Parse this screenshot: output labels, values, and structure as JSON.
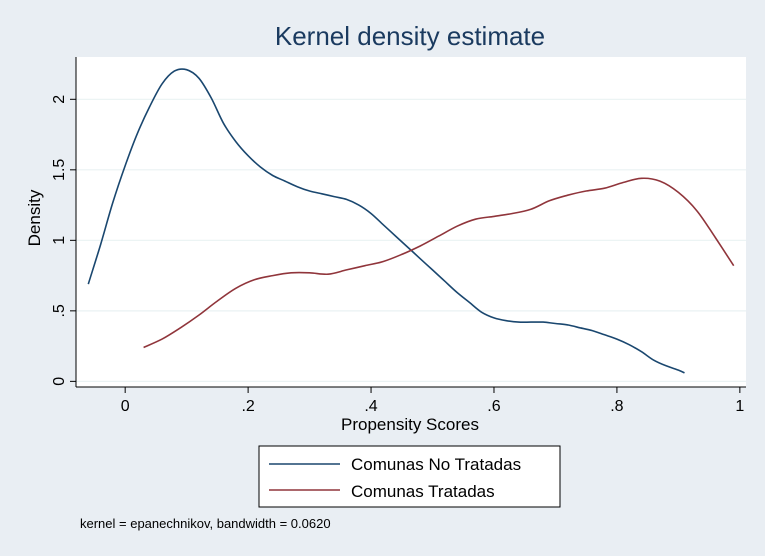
{
  "chart_data": {
    "type": "line",
    "title": "Kernel density estimate",
    "xlabel": "Propensity Scores",
    "ylabel": "Density",
    "xlim": [
      -0.08,
      1.01
    ],
    "ylim": [
      -0.04,
      2.3
    ],
    "xticks": [
      0,
      0.2,
      0.4,
      0.6,
      0.8,
      1
    ],
    "xtick_labels": [
      "0",
      ".2",
      ".4",
      ".6",
      ".8",
      "1"
    ],
    "yticks": [
      0,
      0.5,
      1,
      1.5,
      2
    ],
    "ytick_labels": [
      "0",
      ".5",
      "1",
      "1.5",
      "2"
    ],
    "grid": true,
    "legend_position": "bottom",
    "note": "kernel = epanechnikov, bandwidth = 0.0620",
    "series": [
      {
        "name": "Comunas No Tratadas",
        "color": "#1a476f",
        "x": [
          -0.06,
          -0.04,
          -0.02,
          0.0,
          0.02,
          0.04,
          0.06,
          0.08,
          0.1,
          0.12,
          0.14,
          0.16,
          0.18,
          0.2,
          0.22,
          0.24,
          0.26,
          0.28,
          0.3,
          0.32,
          0.34,
          0.36,
          0.38,
          0.4,
          0.42,
          0.44,
          0.46,
          0.48,
          0.5,
          0.52,
          0.54,
          0.56,
          0.58,
          0.6,
          0.62,
          0.64,
          0.66,
          0.68,
          0.7,
          0.72,
          0.74,
          0.76,
          0.78,
          0.8,
          0.82,
          0.84,
          0.86,
          0.88,
          0.9,
          0.91
        ],
        "y": [
          0.69,
          0.97,
          1.27,
          1.53,
          1.76,
          1.95,
          2.11,
          2.2,
          2.21,
          2.15,
          2.01,
          1.83,
          1.7,
          1.6,
          1.52,
          1.46,
          1.42,
          1.38,
          1.35,
          1.33,
          1.31,
          1.29,
          1.25,
          1.19,
          1.11,
          1.03,
          0.95,
          0.87,
          0.79,
          0.71,
          0.63,
          0.56,
          0.49,
          0.45,
          0.43,
          0.42,
          0.42,
          0.42,
          0.41,
          0.4,
          0.38,
          0.36,
          0.33,
          0.3,
          0.26,
          0.21,
          0.15,
          0.11,
          0.08,
          0.06
        ]
      },
      {
        "name": "Comunas Tratadas",
        "color": "#90353b",
        "x": [
          0.03,
          0.06,
          0.09,
          0.12,
          0.15,
          0.18,
          0.21,
          0.24,
          0.27,
          0.3,
          0.33,
          0.36,
          0.39,
          0.42,
          0.45,
          0.48,
          0.51,
          0.54,
          0.57,
          0.6,
          0.63,
          0.66,
          0.69,
          0.72,
          0.75,
          0.78,
          0.81,
          0.84,
          0.87,
          0.9,
          0.93,
          0.96,
          0.99
        ],
        "y": [
          0.24,
          0.3,
          0.38,
          0.47,
          0.57,
          0.66,
          0.72,
          0.75,
          0.77,
          0.77,
          0.76,
          0.79,
          0.82,
          0.85,
          0.9,
          0.96,
          1.03,
          1.1,
          1.15,
          1.17,
          1.19,
          1.22,
          1.28,
          1.32,
          1.35,
          1.37,
          1.41,
          1.44,
          1.42,
          1.34,
          1.21,
          1.02,
          0.82
        ]
      }
    ]
  }
}
